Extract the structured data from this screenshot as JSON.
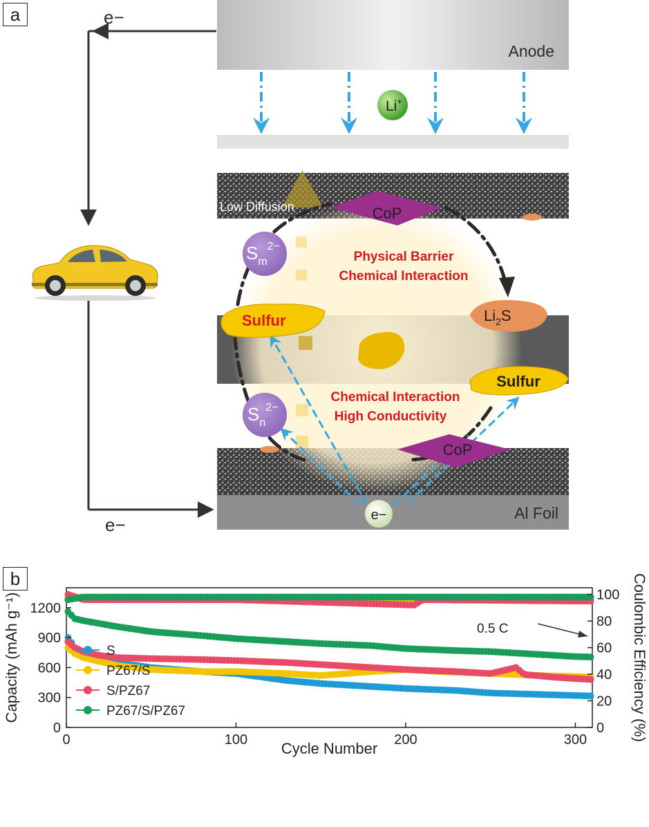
{
  "panel_a": {
    "label": "a",
    "electron": "e−",
    "anode": "Anode",
    "li_ion": "Li",
    "li_ion_sup": "+",
    "low_diffusion": "Low Diffusion",
    "cop": "CoP",
    "sm": "S",
    "sm_sub": "m",
    "sm_sup": "2−",
    "sn": "S",
    "sn_sub": "n",
    "sn_sup": "2−",
    "physical_barrier": "Physical Barrier",
    "chemical_interaction_1": "Chemical Interaction",
    "chemical_interaction_2": "Chemical Interaction",
    "high_conductivity": "High Conductivity",
    "sulfur": "Sulfur",
    "li2s_main": "Li",
    "li2s_sub": "2",
    "li2s_tail": "S",
    "al_foil": "Al Foil",
    "colors": {
      "cop": "#9b2f8c",
      "sulfur": "#f5c800",
      "arrow_blue": "#3aa6e0",
      "red_text": "#d71920",
      "car": "#f2c623",
      "li_sphere": "#5fb93a"
    }
  },
  "panel_b": {
    "label": "b",
    "annotation": "0.5 C",
    "chart_data": {
      "type": "scatter",
      "xlabel": "Cycle Number",
      "ylabel_left": "Capacity (mAh g⁻¹)",
      "ylabel_right": "Coulombic Efficiency (%)",
      "xlim": [
        0,
        310
      ],
      "ylim_left": [
        0,
        1400
      ],
      "ylim_right": [
        0,
        105
      ],
      "x_ticks": [
        0,
        100,
        200,
        300
      ],
      "y_left_ticks": [
        0,
        300,
        600,
        900,
        1200
      ],
      "y_right_ticks": [
        0,
        20,
        40,
        60,
        80,
        100
      ],
      "legend_position": "bottom-left",
      "series": [
        {
          "name": "S",
          "color": "#1f9ad6",
          "capacity": [
            [
              1,
              900
            ],
            [
              5,
              800
            ],
            [
              10,
              740
            ],
            [
              20,
              690
            ],
            [
              30,
              650
            ],
            [
              50,
              600
            ],
            [
              80,
              560
            ],
            [
              100,
              540
            ],
            [
              130,
              470
            ],
            [
              150,
              440
            ],
            [
              180,
              410
            ],
            [
              200,
              390
            ],
            [
              230,
              370
            ],
            [
              250,
              345
            ],
            [
              280,
              330
            ],
            [
              300,
              320
            ],
            [
              310,
              315
            ]
          ],
          "efficiency": [
            [
              1,
              97
            ],
            [
              20,
              98
            ],
            [
              100,
              98
            ],
            [
              200,
              98
            ],
            [
              300,
              98
            ],
            [
              310,
              98
            ]
          ]
        },
        {
          "name": "PZ67/S",
          "color": "#f2c500",
          "capacity": [
            [
              1,
              800
            ],
            [
              5,
              740
            ],
            [
              10,
              700
            ],
            [
              20,
              660
            ],
            [
              30,
              620
            ],
            [
              50,
              580
            ],
            [
              80,
              560
            ],
            [
              100,
              560
            ],
            [
              130,
              540
            ],
            [
              150,
              520
            ],
            [
              180,
              560
            ],
            [
              200,
              580
            ],
            [
              220,
              560
            ],
            [
              250,
              540
            ],
            [
              280,
              520
            ],
            [
              300,
              510
            ],
            [
              310,
              505
            ]
          ],
          "efficiency": [
            [
              1,
              98
            ],
            [
              20,
              98
            ],
            [
              100,
              97
            ],
            [
              200,
              97
            ],
            [
              300,
              97
            ],
            [
              310,
              97
            ]
          ]
        },
        {
          "name": "S/PZ67",
          "color": "#e84a67",
          "capacity": [
            [
              1,
              860
            ],
            [
              5,
              800
            ],
            [
              10,
              760
            ],
            [
              20,
              720
            ],
            [
              30,
              700
            ],
            [
              50,
              690
            ],
            [
              80,
              680
            ],
            [
              100,
              670
            ],
            [
              130,
              650
            ],
            [
              150,
              630
            ],
            [
              180,
              600
            ],
            [
              200,
              580
            ],
            [
              230,
              560
            ],
            [
              250,
              540
            ],
            [
              265,
              600
            ],
            [
              270,
              530
            ],
            [
              290,
              500
            ],
            [
              310,
              480
            ]
          ],
          "efficiency": [
            [
              1,
              100
            ],
            [
              10,
              96
            ],
            [
              100,
              96
            ],
            [
              205,
              92
            ],
            [
              210,
              96
            ],
            [
              300,
              95
            ],
            [
              310,
              95
            ]
          ]
        },
        {
          "name": "PZ67/S/PZ67",
          "color": "#1a9c5a",
          "capacity": [
            [
              1,
              1160
            ],
            [
              5,
              1090
            ],
            [
              10,
              1070
            ],
            [
              20,
              1040
            ],
            [
              30,
              1010
            ],
            [
              50,
              960
            ],
            [
              80,
              920
            ],
            [
              100,
              890
            ],
            [
              130,
              860
            ],
            [
              150,
              840
            ],
            [
              180,
              820
            ],
            [
              200,
              790
            ],
            [
              230,
              770
            ],
            [
              250,
              760
            ],
            [
              280,
              730
            ],
            [
              300,
              710
            ],
            [
              310,
              705
            ]
          ],
          "efficiency": [
            [
              1,
              96
            ],
            [
              10,
              98
            ],
            [
              100,
              98
            ],
            [
              200,
              98
            ],
            [
              300,
              98
            ],
            [
              310,
              98
            ]
          ]
        }
      ]
    }
  }
}
